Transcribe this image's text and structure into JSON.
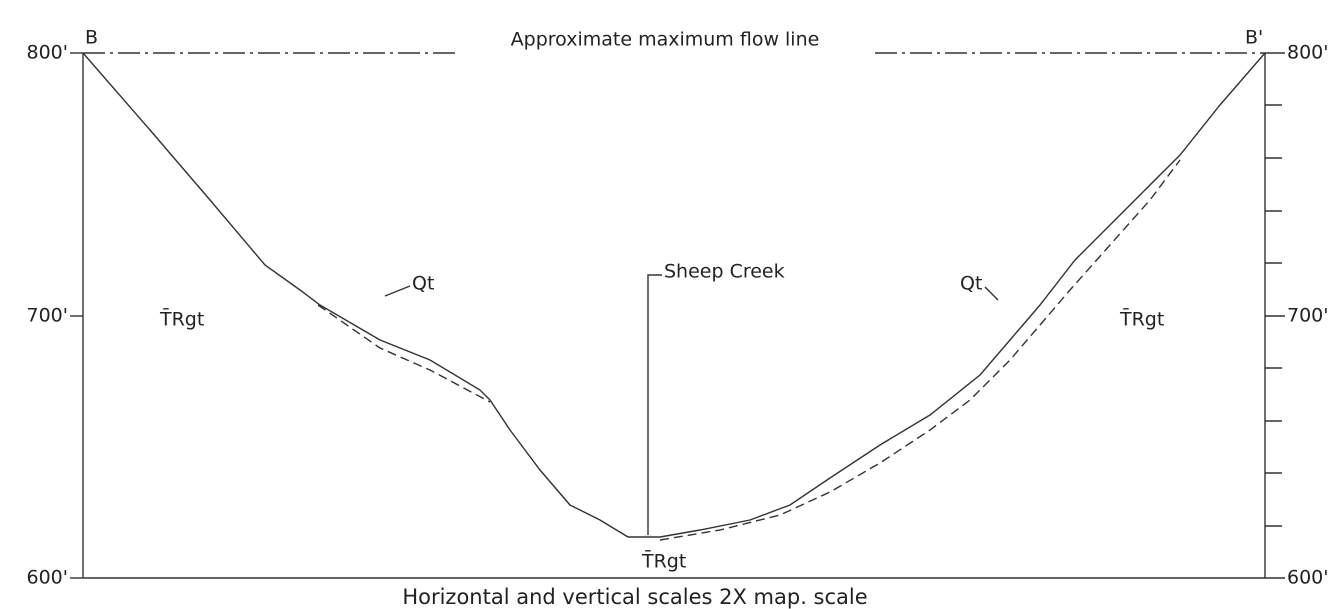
{
  "section": {
    "start_label": "B",
    "end_label": "B'"
  },
  "flow_line_label": "Approximate maximum flow line",
  "left_axis": {
    "labels": [
      "800'",
      "700'",
      "600'"
    ]
  },
  "right_axis": {
    "labels": [
      "800'",
      "700'",
      "600'"
    ]
  },
  "units": [
    {
      "label": "T̄Rgt"
    },
    {
      "label": "Qt"
    },
    {
      "label": "Sheep Creek"
    },
    {
      "label": "Qt"
    },
    {
      "label": "T̄Rgt"
    },
    {
      "label": "T̄Rgt"
    }
  ],
  "caption": "Horizontal and vertical scales 2X map. scale"
}
